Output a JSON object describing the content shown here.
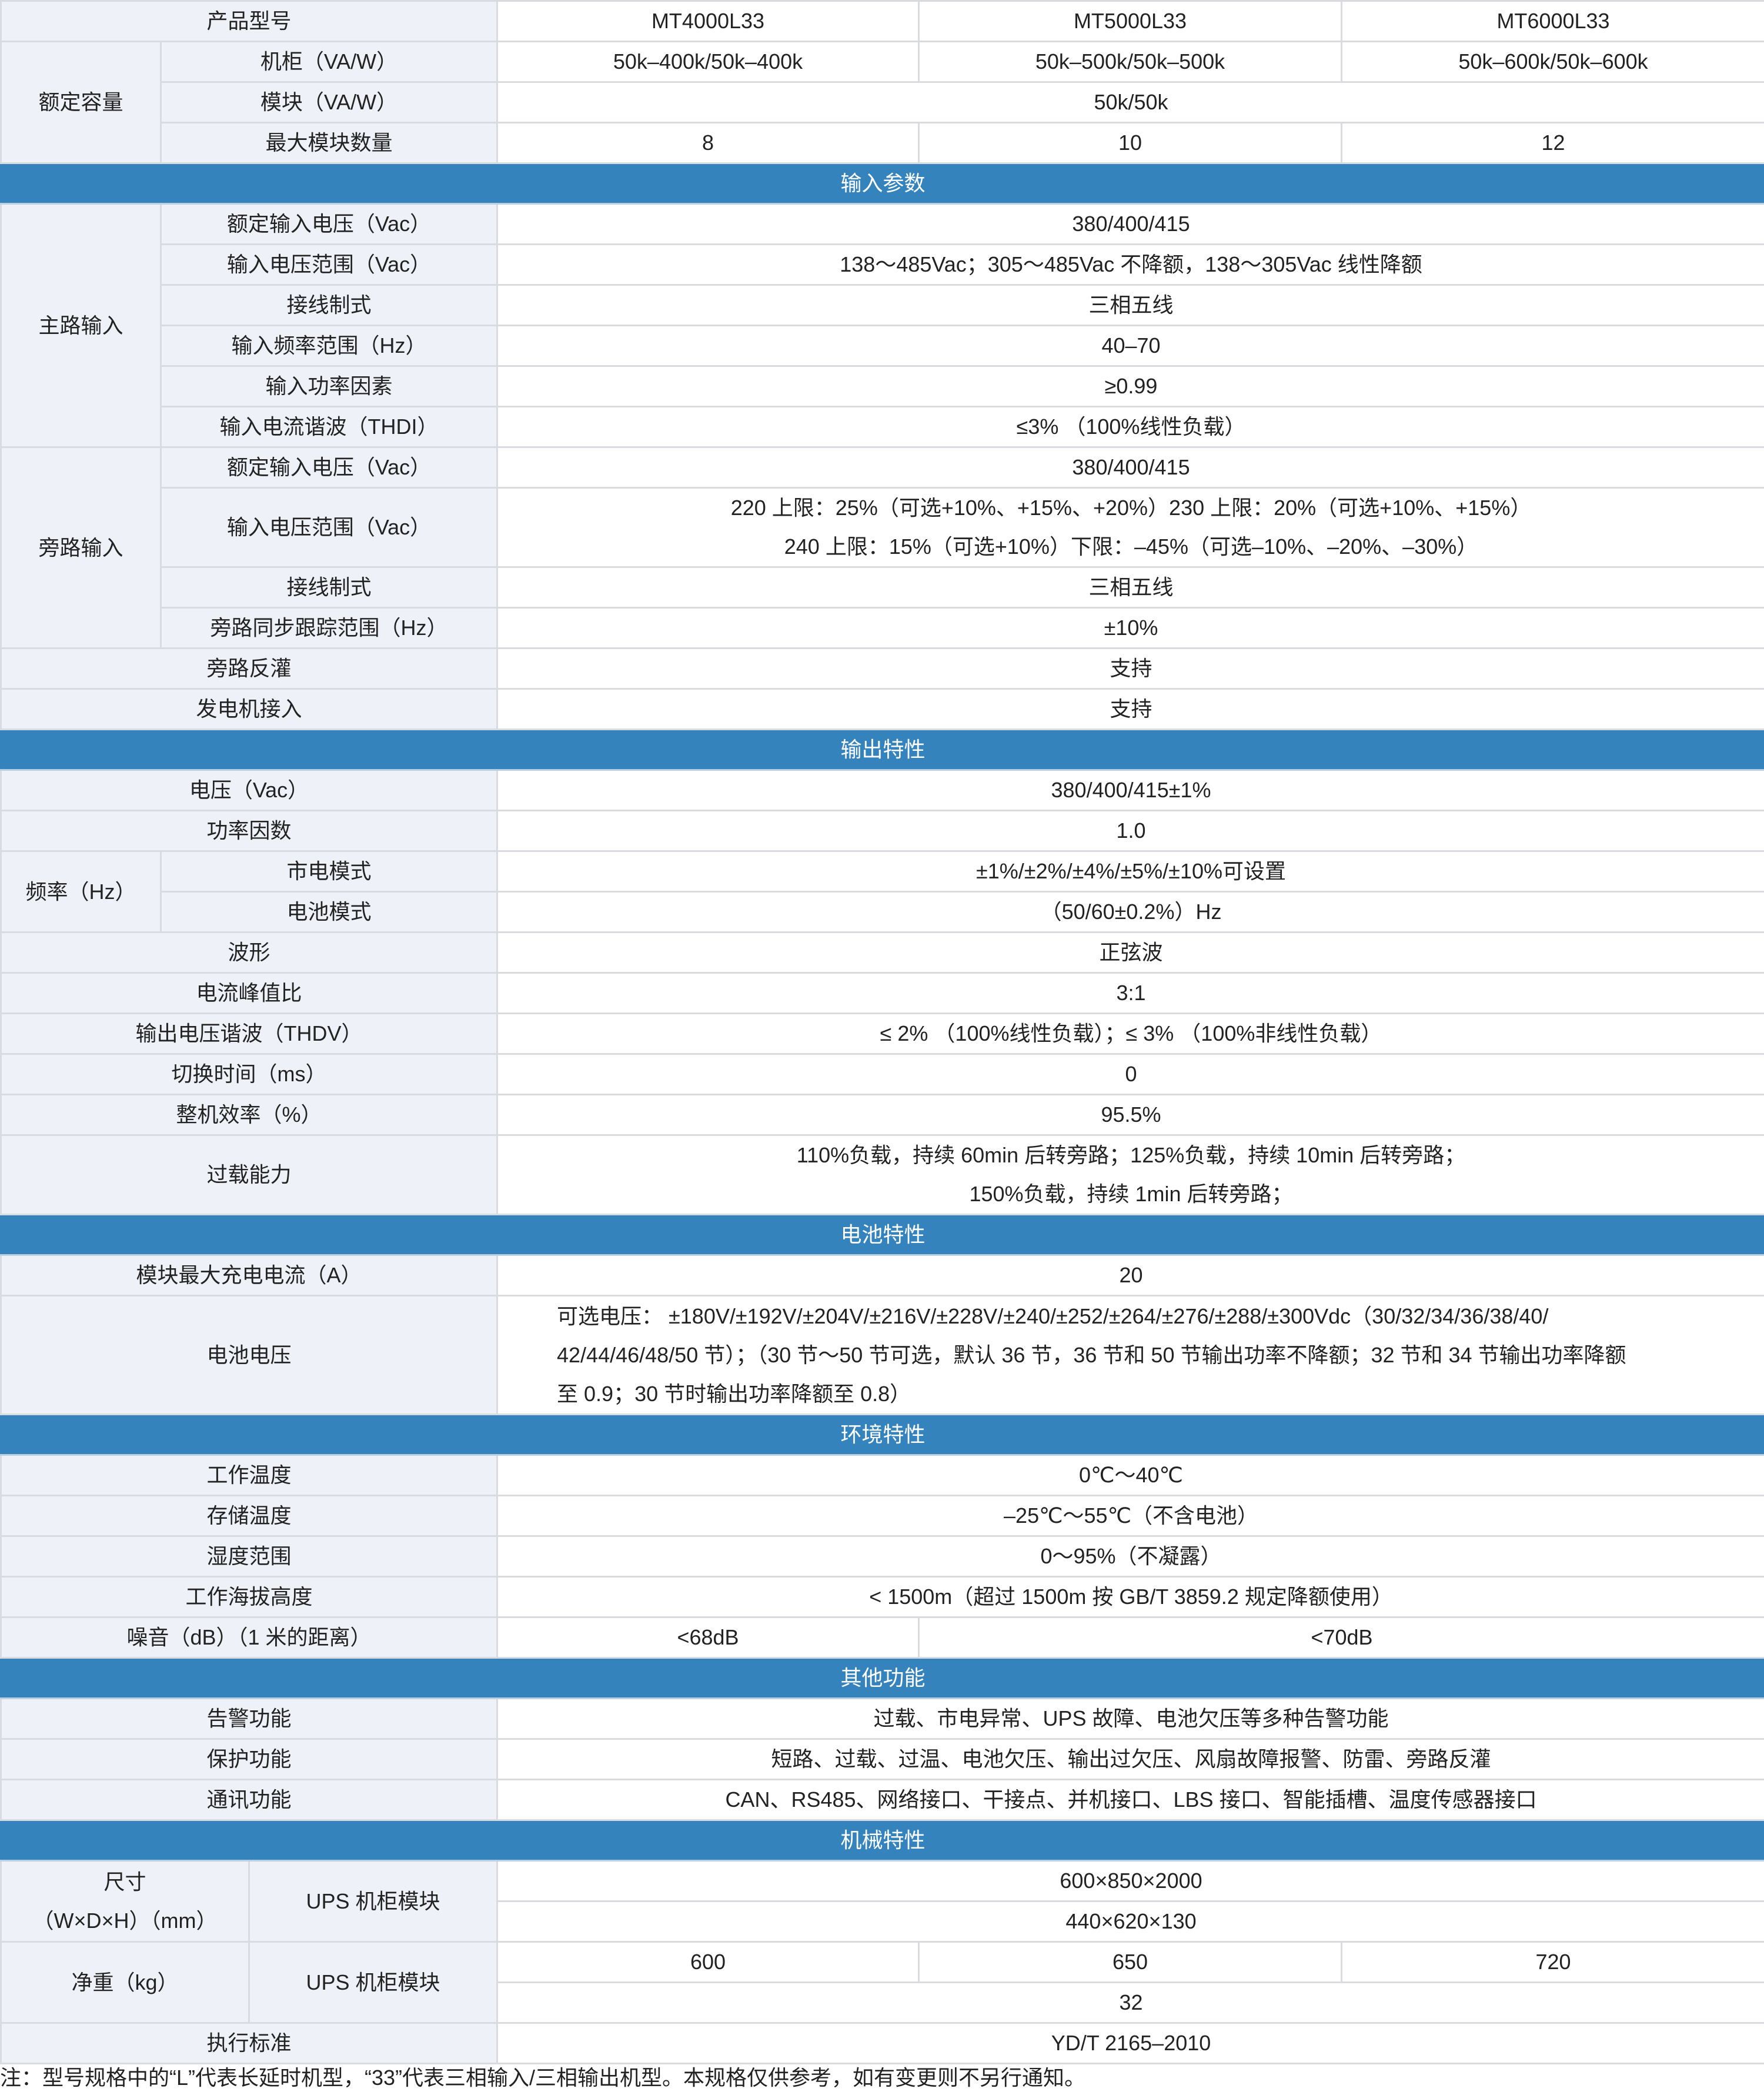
{
  "header": {
    "label": "产品型号",
    "models": [
      "MT4000L33",
      "MT5000L33",
      "MT6000L33"
    ]
  },
  "capacity": {
    "group": "额定容量",
    "cabinet": {
      "label": "机柜（VA/W）",
      "values": [
        "50k–400k/50k–400k",
        "50k–500k/50k–500k",
        "50k–600k/50k–600k"
      ]
    },
    "module": {
      "label": "模块（VA/W）",
      "value": "50k/50k"
    },
    "max_modules": {
      "label": "最大模块数量",
      "values": [
        "8",
        "10",
        "12"
      ]
    }
  },
  "input": {
    "title": "输入参数",
    "main": {
      "group": "主路输入",
      "rows": [
        {
          "label": "额定输入电压（Vac）",
          "value": "380/400/415"
        },
        {
          "label": "输入电压范围（Vac）",
          "value": "138～485Vac；305～485Vac 不降额，138～305Vac 线性降额"
        },
        {
          "label": "接线制式",
          "value": "三相五线"
        },
        {
          "label": "输入频率范围（Hz）",
          "value": "40–70"
        },
        {
          "label": "输入功率因素",
          "value": "≥0.99"
        },
        {
          "label": "输入电流谐波（THDI）",
          "value": "≤3% （100%线性负载）"
        }
      ]
    },
    "bypass": {
      "group": "旁路输入",
      "rated": {
        "label": "额定输入电压（Vac）",
        "value": "380/400/415"
      },
      "range": {
        "label": "输入电压范围（Vac）",
        "lines": [
          "220 上限：25%（可选+10%、+15%、+20%）230 上限：20%（可选+10%、+15%）",
          "240 上限：15%（可选+10%）下限：–45%（可选–10%、–20%、–30%）"
        ]
      },
      "wiring": {
        "label": "接线制式",
        "value": "三相五线"
      },
      "sync": {
        "label": "旁路同步跟踪范围（Hz）",
        "value": "±10%"
      }
    },
    "backfeed": {
      "label": "旁路反灌",
      "value": "支持"
    },
    "generator": {
      "label": "发电机接入",
      "value": "支持"
    }
  },
  "output": {
    "title": "输出特性",
    "voltage": {
      "label": "电压（Vac）",
      "value": "380/400/415±1%"
    },
    "pf": {
      "label": "功率因数",
      "value": "1.0"
    },
    "frequency": {
      "group": "频率（Hz）",
      "utility": {
        "label": "市电模式",
        "value": "±1%/±2%/±4%/±5%/±10%可设置"
      },
      "battery": {
        "label": "电池模式",
        "value": "（50/60±0.2%）Hz"
      }
    },
    "waveform": {
      "label": "波形",
      "value": "正弦波"
    },
    "crest": {
      "label": "电流峰值比",
      "value": "3:1"
    },
    "thdv": {
      "label": "输出电压谐波（THDV）",
      "value": "≤ 2% （100%线性负载）；≤ 3% （100%非线性负载）"
    },
    "transfer": {
      "label": "切换时间（ms）",
      "value": "0"
    },
    "efficiency": {
      "label": "整机效率（%）",
      "value": "95.5%"
    },
    "overload": {
      "label": "过载能力",
      "lines": [
        "110%负载，持续 60min 后转旁路；125%负载，持续 10min 后转旁路；",
        "150%负载，持续 1min 后转旁路；"
      ]
    }
  },
  "battery": {
    "title": "电池特性",
    "charge": {
      "label": "模块最大充电电流（A）",
      "value": "20"
    },
    "voltage": {
      "label": "电池电压",
      "lines": [
        "可选电压：  ±180V/±192V/±204V/±216V/±228V/±240/±252/±264/±276/±288/±300Vdc（30/32/34/36/38/40/",
        "42/44/46/48/50 节）；（30 节～50 节可选，默认 36 节，36 节和 50 节输出功率不降额；32 节和 34 节输出功率降额",
        "至 0.9；30 节时输出功率降额至 0.8）"
      ]
    }
  },
  "environment": {
    "title": "环境特性",
    "rows": [
      {
        "label": "工作温度",
        "value": "0℃～40℃"
      },
      {
        "label": "存储温度",
        "value": "–25℃～55℃（不含电池）"
      },
      {
        "label": "湿度范围",
        "value": "0～95%（不凝露）"
      },
      {
        "label": "工作海拔高度",
        "value": "< 1500m（超过 1500m 按 GB/T 3859.2 规定降额使用）"
      }
    ],
    "noise": {
      "label": "噪音（dB）（1 米的距离）",
      "values": [
        "<68dB",
        "<70dB"
      ]
    }
  },
  "other": {
    "title": "其他功能",
    "rows": [
      {
        "label": "告警功能",
        "value": "过载、市电异常、UPS 故障、电池欠压等多种告警功能"
      },
      {
        "label": "保护功能",
        "value": "短路、过载、过温、电池欠压、输出过欠压、风扇故障报警、防雷、旁路反灌"
      },
      {
        "label": "通讯功能",
        "value": "CAN、RS485、网络接口、干接点、并机接口、LBS 接口、智能插槽、温度传感器接口"
      }
    ]
  },
  "mechanical": {
    "title": "机械特性",
    "size": {
      "label_lines": [
        "尺寸",
        "（W×D×H）（mm）"
      ],
      "sub": "UPS 机柜模块",
      "cabinet": "600×850×2000",
      "module": "440×620×130"
    },
    "weight": {
      "label": "净重（kg）",
      "sub": "UPS 机柜模块",
      "cabinet": [
        "600",
        "650",
        "720"
      ],
      "module": "32"
    },
    "standard": {
      "label": "执行标准",
      "value": "YD/T 2165–2010"
    }
  },
  "note": "注：型号规格中的“L”代表长延时机型，“33”代表三相输入/三相输出机型。本规格仅供参考，如有变更则不另行通知。"
}
